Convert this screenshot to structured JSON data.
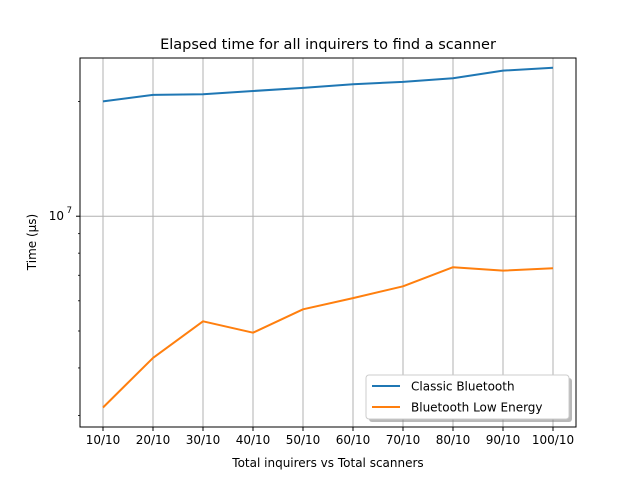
{
  "chart_data": {
    "type": "line",
    "title": "Elapsed time for all inquirers to find a scanner",
    "xlabel": "Total inquirers vs Total scanners",
    "ylabel": "Time (µs)",
    "categories": [
      "10/10",
      "20/10",
      "30/10",
      "40/10",
      "50/10",
      "60/10",
      "70/10",
      "80/10",
      "90/10",
      "100/10"
    ],
    "y_scale": "log",
    "ylim": [
      2800000,
      26000000
    ],
    "y_ticks": [
      {
        "value": 10000000,
        "label_base": "10",
        "label_exp": "7"
      }
    ],
    "grid": true,
    "legend_position": "lower right",
    "series": [
      {
        "name": "Classic Bluetooth",
        "color": "#1f77b4",
        "values": [
          20000000,
          20800000,
          20900000,
          21300000,
          21700000,
          22200000,
          22500000,
          23000000,
          24100000,
          24500000
        ]
      },
      {
        "name": "Bluetooth Low Energy",
        "color": "#ff7f0e",
        "values": [
          3150000,
          4250000,
          5300000,
          4950000,
          5700000,
          6100000,
          6550000,
          7350000,
          7200000,
          7300000
        ]
      }
    ]
  }
}
